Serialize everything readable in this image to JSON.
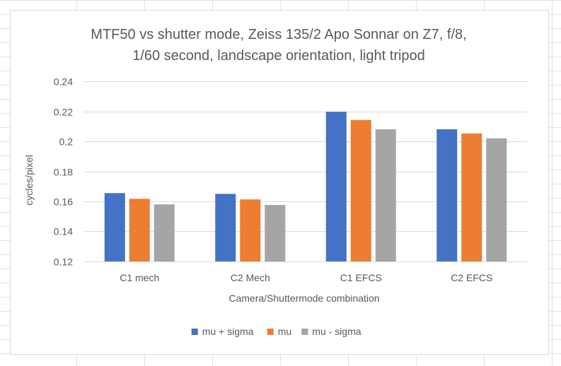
{
  "chart_data": {
    "type": "bar",
    "title_lines": [
      "MTF50 vs shutter mode, Zeiss 135/2 Apo Sonnar on Z7, f/8,",
      "1/60 second, landscape orientation, light tripod"
    ],
    "xlabel": "Camera/Shuttermode combination",
    "ylabel": "cycles/pixel",
    "categories": [
      "C1 mech",
      "C2 Mech",
      "C1 EFCS",
      "C2 EFCS"
    ],
    "ylim": [
      0.12,
      0.24
    ],
    "yticks": [
      0.12,
      0.14,
      0.16,
      0.18,
      0.2,
      0.22,
      0.24
    ],
    "ytick_labels": [
      "0.12",
      "0.14",
      "0.16",
      "0.18",
      "0.2",
      "0.22",
      "0.24"
    ],
    "grid": true,
    "legend_position": "bottom",
    "series": [
      {
        "name": "mu + sigma",
        "color": "#4472c4",
        "values": [
          0.1655,
          0.165,
          0.2197,
          0.208
        ]
      },
      {
        "name": "mu",
        "color": "#ed7d31",
        "values": [
          0.1617,
          0.1613,
          0.2142,
          0.2052
        ]
      },
      {
        "name": "mu - sigma",
        "color": "#a5a5a5",
        "values": [
          0.158,
          0.1576,
          0.208,
          0.202
        ]
      }
    ]
  }
}
